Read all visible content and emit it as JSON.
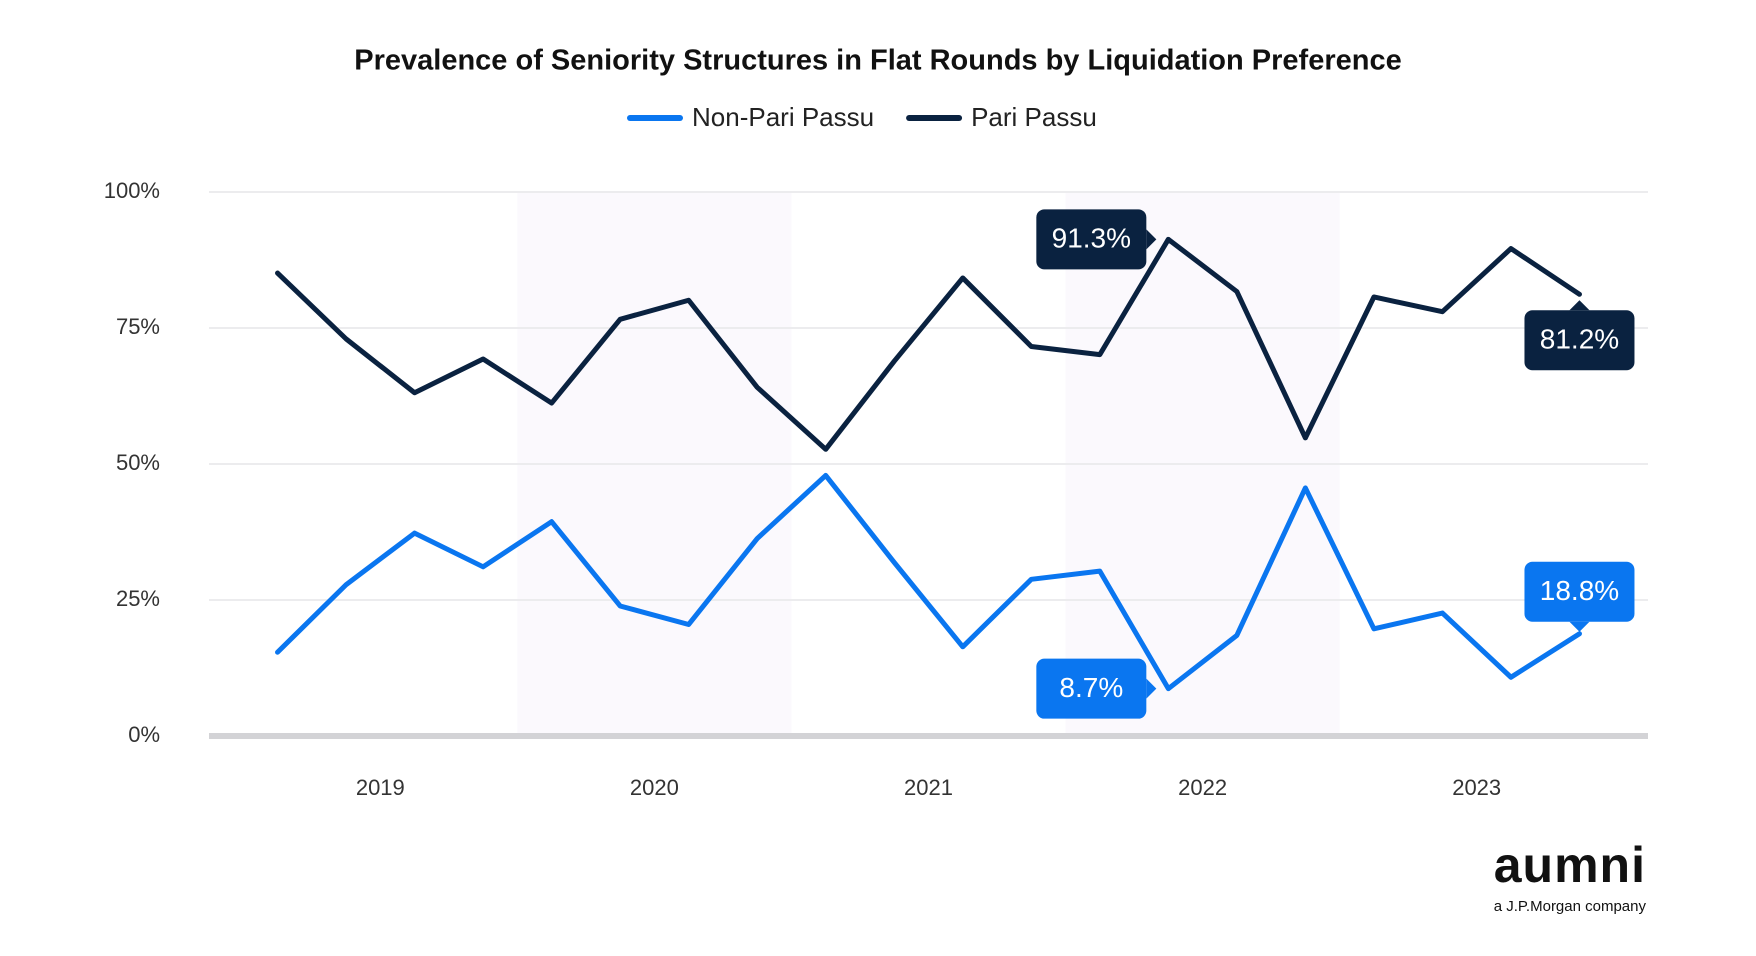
{
  "chart_data": {
    "type": "line",
    "title": "Prevalence of Seniority Structures in Flat Rounds by Liquidation Preference",
    "x": [
      2019,
      2019.25,
      2019.5,
      2019.75,
      2020,
      2020.25,
      2020.5,
      2020.75,
      2021,
      2021.25,
      2021.5,
      2021.75,
      2022,
      2022.25,
      2022.5,
      2022.75,
      2023,
      2023.25,
      2023.5,
      2023.75
    ],
    "series": [
      {
        "name": "Non-Pari Passu",
        "color": "#0a76f0",
        "values": [
          15.4,
          27.8,
          37.3,
          31.1,
          39.4,
          23.9,
          20.5,
          36.3,
          47.9,
          31.9,
          16.4,
          28.8,
          30.3,
          8.7,
          18.5,
          45.6,
          19.7,
          22.6,
          10.8,
          18.8
        ],
        "value_labels": [
          null,
          null,
          null,
          null,
          null,
          null,
          null,
          null,
          null,
          null,
          null,
          null,
          null,
          "8.7%",
          null,
          null,
          null,
          null,
          null,
          "18.8%"
        ]
      },
      {
        "name": "Pari Passu",
        "color": "#0a2240",
        "values": [
          85.1,
          73.0,
          63.1,
          69.3,
          61.2,
          76.6,
          80.1,
          64.1,
          52.7,
          68.9,
          84.2,
          71.6,
          70.1,
          91.3,
          81.7,
          54.8,
          80.7,
          78.0,
          89.6,
          81.2
        ],
        "value_labels": [
          null,
          null,
          null,
          null,
          null,
          null,
          null,
          null,
          null,
          null,
          null,
          null,
          null,
          "91.3%",
          null,
          null,
          null,
          null,
          null,
          "81.2%"
        ]
      }
    ],
    "xlim": [
      2018.75,
      2024.0
    ],
    "xticks": [
      {
        "value": 2019.375,
        "label": "2019"
      },
      {
        "value": 2020.375,
        "label": "2020"
      },
      {
        "value": 2021.375,
        "label": "2021"
      },
      {
        "value": 2022.375,
        "label": "2022"
      },
      {
        "value": 2023.375,
        "label": "2023"
      }
    ],
    "ylim": [
      0,
      100
    ],
    "yticks": [
      {
        "value": 0,
        "label": "0%"
      },
      {
        "value": 25,
        "label": "25%"
      },
      {
        "value": 50,
        "label": "50%"
      },
      {
        "value": 75,
        "label": "75%"
      },
      {
        "value": 100,
        "label": "100%"
      }
    ],
    "shaded_bands": [
      [
        2019.875,
        2020.875
      ],
      [
        2021.875,
        2022.875
      ]
    ],
    "grid": true,
    "legend": "top"
  },
  "logo": {
    "name": "aumni",
    "tagline": "a J.P.Morgan company"
  }
}
